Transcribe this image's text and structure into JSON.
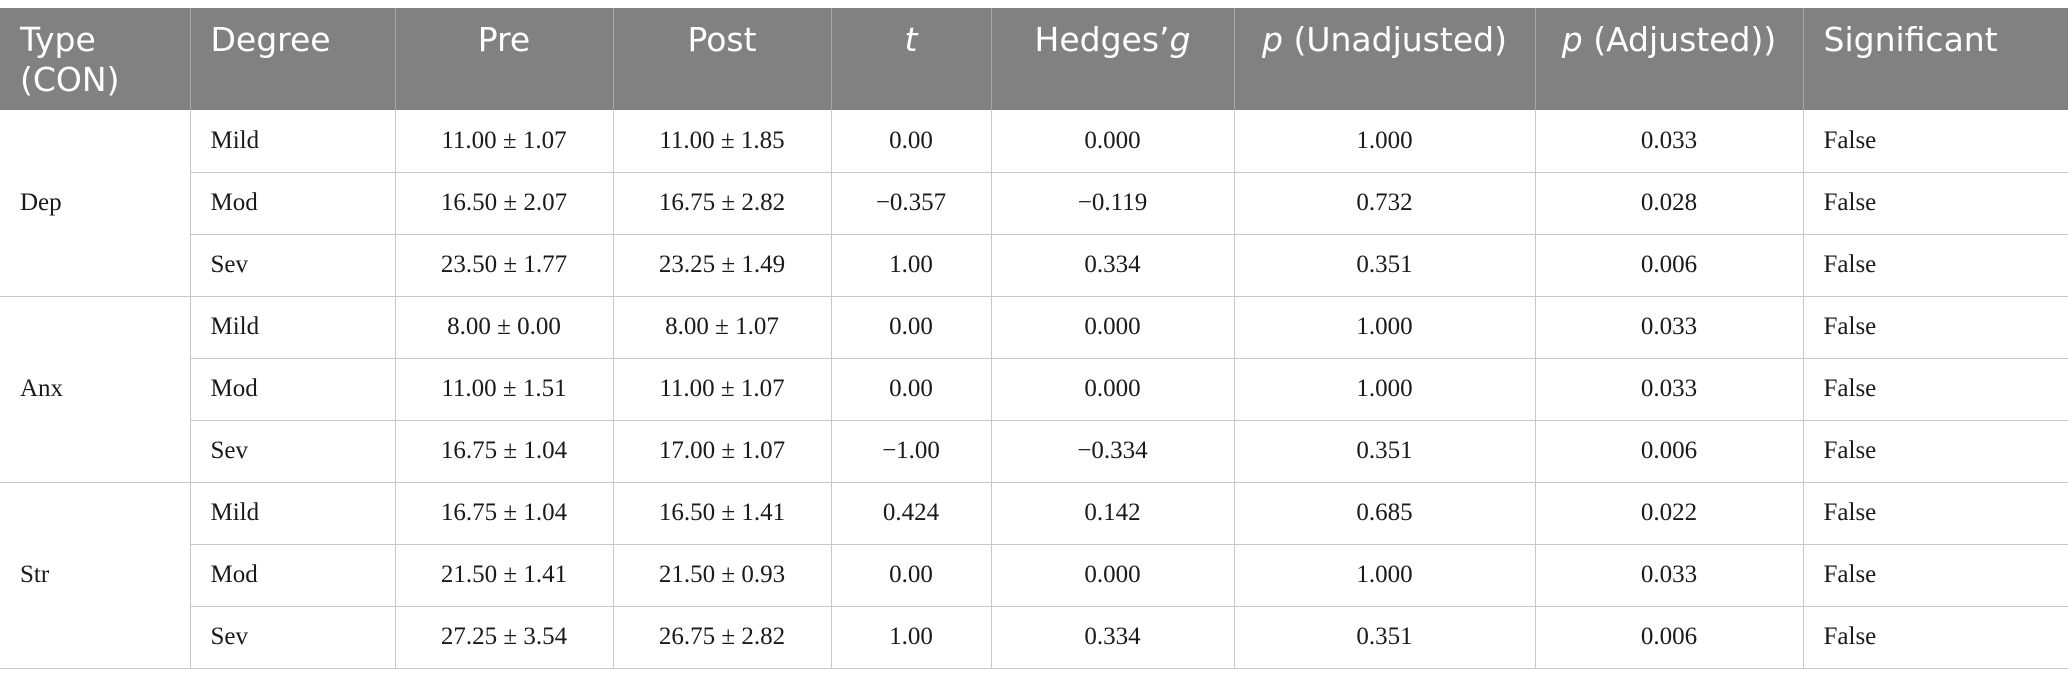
{
  "header": {
    "type": "Type (CON)",
    "degree": "Degree",
    "pre": "Pre",
    "post": "Post",
    "t": "t",
    "hedges_prefix": "Hedges’",
    "hedges_g": "g",
    "p_unadj_italic": "p",
    "p_unadj_rest": " (Unadjusted)",
    "p_adj_italic": "p",
    "p_adj_rest": " (Adjusted))",
    "significant": "Significant"
  },
  "groups": [
    {
      "type": "Dep",
      "rows": [
        {
          "degree": "Mild",
          "pre": "11.00 ± 1.07",
          "post": "11.00 ± 1.85",
          "t": "0.00",
          "g": "0.000",
          "p_unadj": "1.000",
          "p_adj": "0.033",
          "sig": "False"
        },
        {
          "degree": "Mod",
          "pre": "16.50 ± 2.07",
          "post": "16.75 ± 2.82",
          "t": "−0.357",
          "g": "−0.119",
          "p_unadj": "0.732",
          "p_adj": "0.028",
          "sig": "False"
        },
        {
          "degree": "Sev",
          "pre": "23.50 ± 1.77",
          "post": "23.25 ± 1.49",
          "t": "1.00",
          "g": "0.334",
          "p_unadj": "0.351",
          "p_adj": "0.006",
          "sig": "False"
        }
      ]
    },
    {
      "type": "Anx",
      "rows": [
        {
          "degree": "Mild",
          "pre": "8.00 ± 0.00",
          "post": "8.00 ± 1.07",
          "t": "0.00",
          "g": "0.000",
          "p_unadj": "1.000",
          "p_adj": "0.033",
          "sig": "False"
        },
        {
          "degree": "Mod",
          "pre": "11.00 ± 1.51",
          "post": "11.00 ± 1.07",
          "t": "0.00",
          "g": "0.000",
          "p_unadj": "1.000",
          "p_adj": "0.033",
          "sig": "False"
        },
        {
          "degree": "Sev",
          "pre": "16.75 ± 1.04",
          "post": "17.00 ± 1.07",
          "t": "−1.00",
          "g": "−0.334",
          "p_unadj": "0.351",
          "p_adj": "0.006",
          "sig": "False"
        }
      ]
    },
    {
      "type": "Str",
      "rows": [
        {
          "degree": "Mild",
          "pre": "16.75 ± 1.04",
          "post": "16.50 ± 1.41",
          "t": "0.424",
          "g": "0.142",
          "p_unadj": "0.685",
          "p_adj": "0.022",
          "sig": "False"
        },
        {
          "degree": "Mod",
          "pre": "21.50 ± 1.41",
          "post": "21.50 ± 0.93",
          "t": "0.00",
          "g": "0.000",
          "p_unadj": "1.000",
          "p_adj": "0.033",
          "sig": "False"
        },
        {
          "degree": "Sev",
          "pre": "27.25 ± 3.54",
          "post": "26.75 ± 2.82",
          "t": "1.00",
          "g": "0.334",
          "p_unadj": "0.351",
          "p_adj": "0.006",
          "sig": "False"
        }
      ]
    }
  ]
}
